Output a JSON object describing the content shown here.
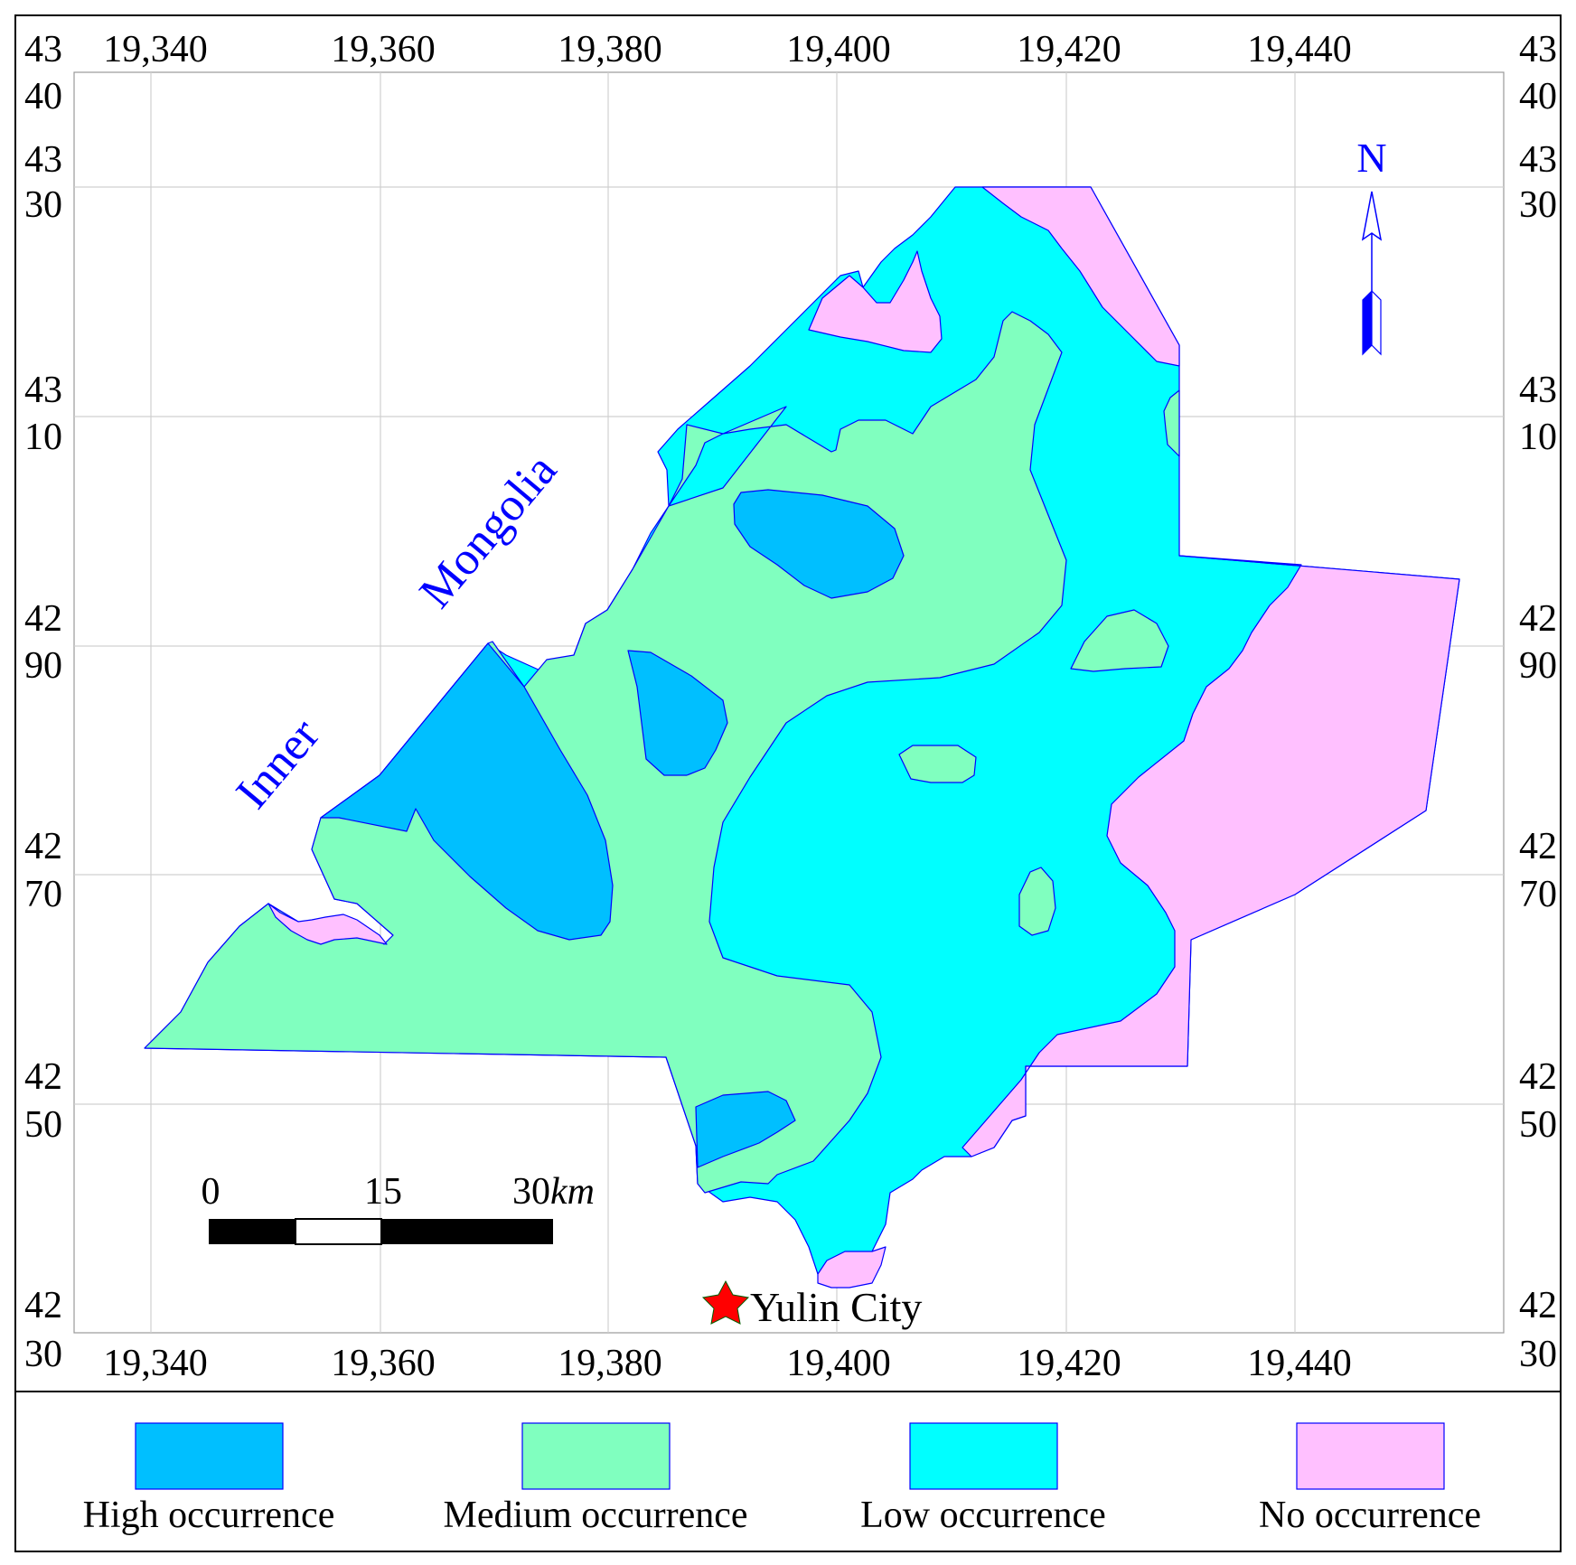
{
  "axes": {
    "x_ticks": [
      "19,340",
      "19,360",
      "19,380",
      "19,400",
      "19,420",
      "19,440"
    ],
    "y_ticks": [
      {
        "top": "43",
        "bottom": "40"
      },
      {
        "top": "43",
        "bottom": "30"
      },
      {
        "top": "43",
        "bottom": "10"
      },
      {
        "top": "42",
        "bottom": "90"
      },
      {
        "top": "42",
        "bottom": "70"
      },
      {
        "top": "42",
        "bottom": "50"
      },
      {
        "top": "42",
        "bottom": "30"
      }
    ]
  },
  "map_labels": {
    "region_word1": "Inner",
    "region_word2": "Mongolia",
    "city": "Yulin City",
    "north": "N"
  },
  "scale_bar": {
    "label_0": "0",
    "label_15": "15",
    "label_30": "30",
    "unit": "km"
  },
  "legend": {
    "items": [
      {
        "label": "High occurrence",
        "color": "#00bfff"
      },
      {
        "label": "Medium occurrence",
        "color": "#80ffbf"
      },
      {
        "label": "Low occurrence",
        "color": "#00ffff"
      },
      {
        "label": "No occurrence",
        "color": "#ffc0ff"
      }
    ]
  },
  "colors": {
    "boundary": "#0000ff",
    "label_blue": "#0000ff",
    "city_star": "#ff0000",
    "grid": "#d0d0d0"
  }
}
